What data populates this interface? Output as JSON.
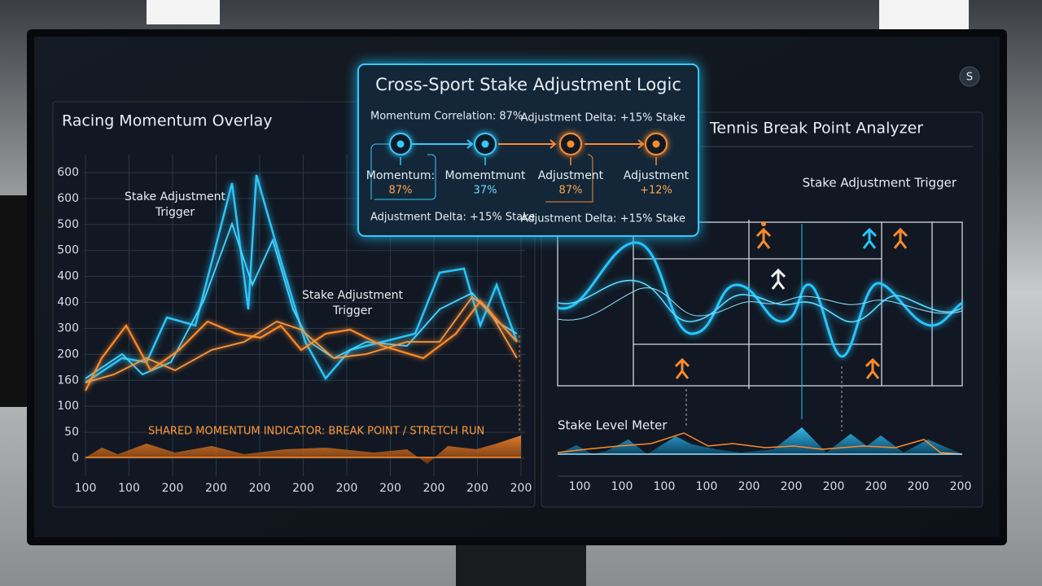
{
  "left_panel": {
    "title": "Racing Momentum Overlay",
    "annotations": [
      "Stake Adjustment",
      "Trigger",
      "Stake Adjustment",
      "Trigger"
    ],
    "indicator": "SHARED MOMENTUM INDICATOR: BREAK POINT / STRETCH RUN",
    "y_labels": [
      "600",
      "600",
      "500",
      "500",
      "400",
      "400",
      "300",
      "200",
      "160",
      "100",
      "50",
      "0"
    ],
    "x_labels": [
      "100",
      "100",
      "200",
      "200",
      "200",
      "200",
      "200",
      "200",
      "200",
      "200",
      "200"
    ]
  },
  "logic_popup": {
    "title": "Cross-Sport Stake Adjustment Logic",
    "top_left": "Momentum Correlation: 87%",
    "top_right": "Adjustment Delta: +15% Stake",
    "nodes": [
      {
        "label": "Momentum:",
        "value": "87%"
      },
      {
        "label": "Momemtmunt",
        "value": "37%"
      },
      {
        "label": "Adjustment",
        "value": "87%"
      },
      {
        "label": "Adjustment",
        "value": "+12%"
      }
    ],
    "bottom_left": "Adjustment Delta: +15% Stake",
    "bottom_right": "Adjustment Delta: +15% Stake"
  },
  "right_panel": {
    "title": "Tennis Break Point Analyzer",
    "annotation": "Stake Adjustment Trigger",
    "meter_label": "Stake Level Meter",
    "x_labels": [
      "100",
      "100",
      "100",
      "100",
      "200",
      "200",
      "200",
      "200",
      "200",
      "200"
    ]
  },
  "avatar": "S"
}
